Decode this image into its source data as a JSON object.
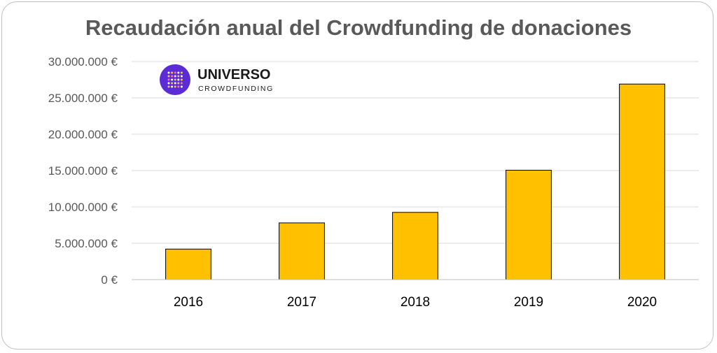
{
  "chart_data": {
    "type": "bar",
    "title": "Recaudación anual del Crowdfunding de donaciones",
    "categories": [
      "2016",
      "2017",
      "2018",
      "2019",
      "2020"
    ],
    "values": [
      4200000,
      7800000,
      9250000,
      15050000,
      26900000
    ],
    "ylim": [
      0,
      30000000
    ],
    "yticks": [
      0,
      5000000,
      10000000,
      15000000,
      20000000,
      25000000,
      30000000
    ],
    "ytick_labels": [
      "0 €",
      "5.000.000 €",
      "10.000.000 €",
      "15.000.000 €",
      "20.000.000 €",
      "25.000.000 €",
      "30.000.000 €"
    ],
    "xlabel": "",
    "ylabel": "",
    "grid": true,
    "bar_color": "#FFC000",
    "bar_edge_color": "#000000",
    "gridline_color": "#d9d9d9"
  },
  "logo": {
    "name": "UNIVERSO",
    "tagline": "CROWDFUNDING",
    "circle_color": "#5b2bd6"
  }
}
